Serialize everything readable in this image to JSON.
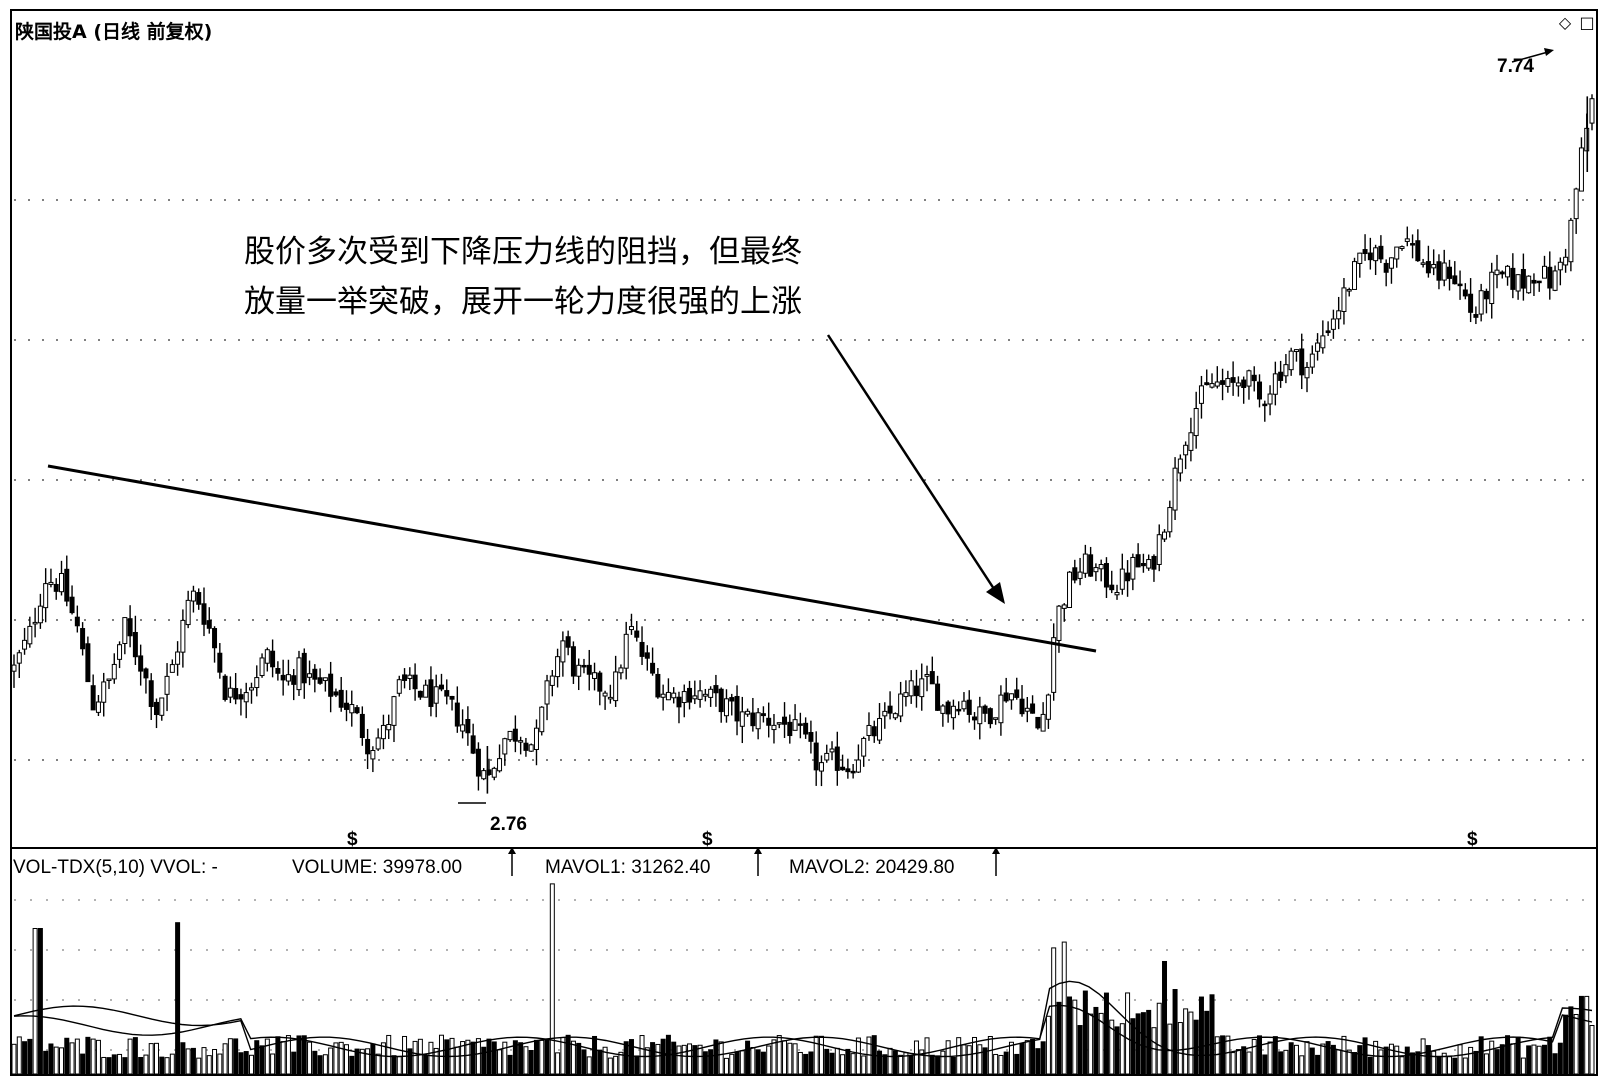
{
  "header": {
    "title": "陕国投A (日线 前复权)"
  },
  "icons": {
    "diamond": "diamond-icon",
    "window": "window-icon"
  },
  "annotation": {
    "line1": "股价多次受到下降压力线的阻挡，但最终",
    "line2": "放量一举突破，展开一轮力度很强的上涨"
  },
  "labels": {
    "high_price": "7.74",
    "low_price": "2.76",
    "dividend_marker": "$"
  },
  "volume_panel": {
    "indicator": "VOL-TDX(5,10) VVOL: -",
    "volume": "VOLUME: 39978.00",
    "mavol1": "MAVOL1: 31262.40",
    "mavol2": "MAVOL2: 20429.80"
  },
  "colors": {
    "background": "#ffffff",
    "ink": "#000000"
  },
  "chart_data": [
    {
      "type": "candlestick",
      "title": "陕国投A (日线 前复权)",
      "price_range": [
        2.5,
        8.0
      ],
      "grid": "dotted horizontal",
      "annotated_high": 7.74,
      "annotated_low": 2.76,
      "resistance_line": {
        "from": [
          0.025,
          4.48
        ],
        "to": [
          0.7,
          3.7
        ]
      },
      "close_path": [
        [
          0.0,
          3.65
        ],
        [
          0.01,
          3.9
        ],
        [
          0.02,
          4.3
        ],
        [
          0.03,
          4.25
        ],
        [
          0.04,
          3.95
        ],
        [
          0.05,
          3.4
        ],
        [
          0.06,
          3.55
        ],
        [
          0.07,
          3.95
        ],
        [
          0.08,
          3.7
        ],
        [
          0.09,
          3.35
        ],
        [
          0.1,
          3.65
        ],
        [
          0.11,
          4.1
        ],
        [
          0.115,
          4.2
        ],
        [
          0.125,
          3.9
        ],
        [
          0.135,
          3.45
        ],
        [
          0.15,
          3.55
        ],
        [
          0.16,
          3.75
        ],
        [
          0.17,
          3.55
        ],
        [
          0.18,
          3.65
        ],
        [
          0.19,
          3.55
        ],
        [
          0.2,
          3.5
        ],
        [
          0.215,
          3.35
        ],
        [
          0.225,
          3.1
        ],
        [
          0.235,
          3.2
        ],
        [
          0.245,
          3.55
        ],
        [
          0.255,
          3.5
        ],
        [
          0.265,
          3.45
        ],
        [
          0.275,
          3.4
        ],
        [
          0.285,
          3.25
        ],
        [
          0.295,
          2.95
        ],
        [
          0.3,
          2.85
        ],
        [
          0.31,
          3.15
        ],
        [
          0.32,
          3.2
        ],
        [
          0.33,
          3.1
        ],
        [
          0.34,
          3.6
        ],
        [
          0.348,
          3.85
        ],
        [
          0.355,
          3.65
        ],
        [
          0.365,
          3.55
        ],
        [
          0.38,
          3.5
        ],
        [
          0.39,
          3.95
        ],
        [
          0.4,
          3.7
        ],
        [
          0.41,
          3.5
        ],
        [
          0.42,
          3.45
        ],
        [
          0.43,
          3.5
        ],
        [
          0.44,
          3.45
        ],
        [
          0.45,
          3.4
        ],
        [
          0.46,
          3.3
        ],
        [
          0.475,
          3.3
        ],
        [
          0.49,
          3.25
        ],
        [
          0.5,
          3.15
        ],
        [
          0.51,
          2.95
        ],
        [
          0.52,
          3.0
        ],
        [
          0.53,
          2.95
        ],
        [
          0.54,
          3.15
        ],
        [
          0.55,
          3.25
        ],
        [
          0.56,
          3.4
        ],
        [
          0.57,
          3.5
        ],
        [
          0.58,
          3.55
        ],
        [
          0.59,
          3.35
        ],
        [
          0.6,
          3.45
        ],
        [
          0.61,
          3.3
        ],
        [
          0.62,
          3.35
        ],
        [
          0.63,
          3.5
        ],
        [
          0.64,
          3.4
        ],
        [
          0.65,
          3.2
        ],
        [
          0.655,
          3.5
        ],
        [
          0.66,
          4.0
        ],
        [
          0.67,
          4.3
        ],
        [
          0.68,
          4.4
        ],
        [
          0.69,
          4.3
        ],
        [
          0.7,
          4.25
        ],
        [
          0.71,
          4.4
        ],
        [
          0.72,
          4.35
        ],
        [
          0.73,
          4.75
        ],
        [
          0.74,
          5.25
        ],
        [
          0.75,
          5.55
        ],
        [
          0.76,
          5.7
        ],
        [
          0.77,
          5.65
        ],
        [
          0.78,
          5.75
        ],
        [
          0.79,
          5.55
        ],
        [
          0.8,
          5.75
        ],
        [
          0.81,
          5.9
        ],
        [
          0.82,
          5.8
        ],
        [
          0.83,
          6.05
        ],
        [
          0.84,
          6.25
        ],
        [
          0.85,
          6.5
        ],
        [
          0.86,
          6.65
        ],
        [
          0.87,
          6.55
        ],
        [
          0.88,
          6.75
        ],
        [
          0.89,
          6.6
        ],
        [
          0.9,
          6.45
        ],
        [
          0.91,
          6.5
        ],
        [
          0.92,
          6.3
        ],
        [
          0.925,
          6.15
        ],
        [
          0.935,
          6.4
        ],
        [
          0.945,
          6.45
        ],
        [
          0.955,
          6.4
        ],
        [
          0.965,
          6.5
        ],
        [
          0.975,
          6.4
        ],
        [
          0.985,
          6.7
        ],
        [
          0.993,
          7.3
        ],
        [
          1.0,
          7.7
        ]
      ],
      "dividend_markers_at": [
        0.215,
        0.44,
        0.925
      ]
    },
    {
      "type": "bar",
      "title": "VOL-TDX(5,10)",
      "series": [
        {
          "name": "VOLUME",
          "last": 39978.0
        },
        {
          "name": "MAVOL1",
          "last": 31262.4
        },
        {
          "name": "MAVOL2",
          "last": 20429.8
        }
      ],
      "volume_spikes": [
        [
          0.015,
          0.75
        ],
        [
          0.105,
          0.78
        ],
        [
          0.34,
          0.98
        ],
        [
          0.66,
          0.65
        ],
        [
          0.665,
          0.68
        ],
        [
          0.73,
          0.58
        ],
        [
          0.995,
          0.4
        ]
      ]
    }
  ]
}
